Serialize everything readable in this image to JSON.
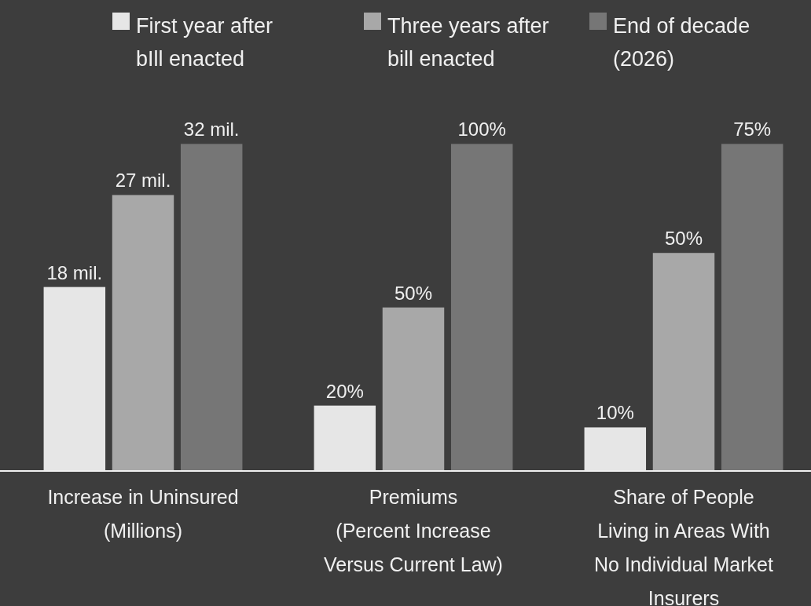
{
  "chart_data": [
    {
      "type": "bar",
      "categories": [
        null
      ],
      "xlabel": "Increase in Uninsured\n(Millions)",
      "legend": "top",
      "series": [
        {
          "name": "First year after\nbIll enacted",
          "color": "#e6e6e6",
          "values": [
            18
          ],
          "value_labels": [
            "18 mil."
          ]
        },
        {
          "name": "Three years after\nbill enacted",
          "color": "#a8a8a8",
          "values": [
            27
          ],
          "value_labels": [
            "27 mil."
          ]
        },
        {
          "name": "End of decade\n(2026)",
          "color": "#767676",
          "values": [
            32
          ],
          "value_labels": [
            "32 mil."
          ]
        }
      ]
    },
    {
      "type": "bar",
      "categories": [
        null
      ],
      "xlabel": "Premiums\n(Percent Increase\nVersus Current Law)",
      "series": [
        {
          "color": "#e6e6e6",
          "values": [
            20
          ],
          "value_labels": [
            "20%"
          ]
        },
        {
          "color": "#a8a8a8",
          "values": [
            50
          ],
          "value_labels": [
            "50%"
          ]
        },
        {
          "color": "#767676",
          "values": [
            100
          ],
          "value_labels": [
            "100%"
          ]
        }
      ]
    },
    {
      "type": "bar",
      "categories": [
        null
      ],
      "xlabel": "Share of People\nLiving in Areas With\nNo Individual Market\nInsurers",
      "series": [
        {
          "color": "#e6e6e6",
          "values": [
            10
          ],
          "value_labels": [
            "10%"
          ]
        },
        {
          "color": "#a8a8a8",
          "values": [
            50
          ],
          "value_labels": [
            "50%"
          ]
        },
        {
          "color": "#767676",
          "values": [
            75
          ],
          "value_labels": [
            "75%"
          ]
        }
      ]
    }
  ]
}
